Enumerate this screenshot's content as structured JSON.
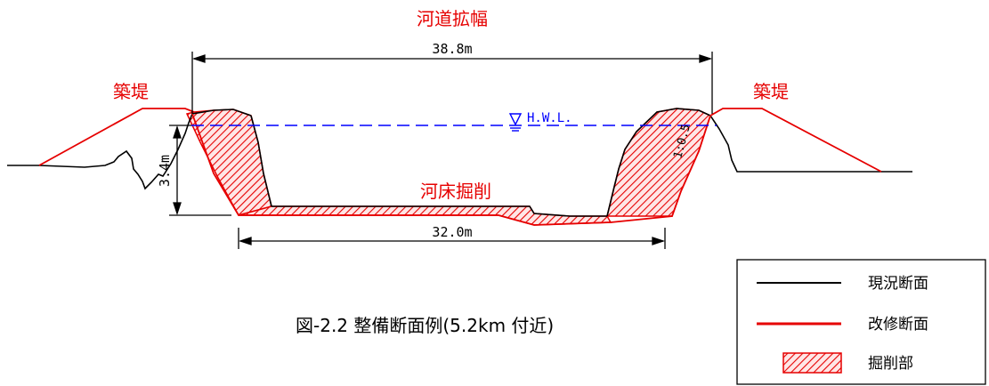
{
  "labels": {
    "widening": "河道拡幅",
    "levee_left": "築堤",
    "levee_right": "築堤",
    "bed_excavation": "河床掘削"
  },
  "dimensions": {
    "top_width": "38.8m",
    "bottom_width": "32.0m",
    "depth": "3.4m",
    "slope": "1:0.5",
    "hwl": "H.W.L."
  },
  "caption": "図-2.2 整備断面例(5.2km 付近)",
  "legend": {
    "items": [
      {
        "label": "現況断面"
      },
      {
        "label": "改修断面"
      },
      {
        "label": "掘削部"
      }
    ]
  },
  "colors": {
    "existing": "#000000",
    "improved": "#e60000",
    "hwl": "#0000ff",
    "hatch": "#e60000"
  }
}
